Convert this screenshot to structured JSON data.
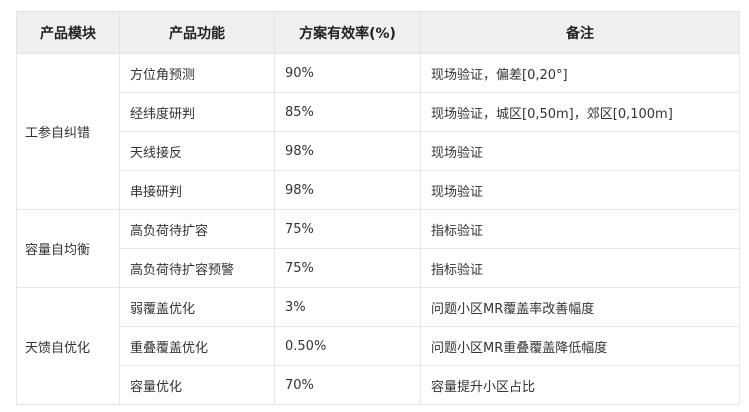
{
  "table": {
    "headers": [
      "产品模块",
      "产品功能",
      "方案有效率(%)",
      "备注"
    ],
    "groups": [
      {
        "module": "工参自纠错",
        "rows": [
          {
            "function": "方位角预测",
            "rate": "90%",
            "note": "现场验证，偏差[0,20°]"
          },
          {
            "function": "经纬度研判",
            "rate": "85%",
            "note": "现场验证，城区[0,50m]，郊区[0,100m]"
          },
          {
            "function": "天线接反",
            "rate": "98%",
            "note": "现场验证"
          },
          {
            "function": "串接研判",
            "rate": "98%",
            "note": "现场验证"
          }
        ]
      },
      {
        "module": "容量自均衡",
        "rows": [
          {
            "function": "高负荷待扩容",
            "rate": "75%",
            "note": "指标验证"
          },
          {
            "function": "高负荷待扩容预警",
            "rate": "75%",
            "note": "指标验证"
          }
        ]
      },
      {
        "module": "天馈自优化",
        "rows": [
          {
            "function": "弱覆盖优化",
            "rate": "3%",
            "note": "问题小区MR覆盖率改善幅度"
          },
          {
            "function": "重叠覆盖优化",
            "rate": "0.50%",
            "note": "问题小区MR重叠覆盖降低幅度"
          },
          {
            "function": "容量优化",
            "rate": "70%",
            "note": "容量提升小区占比"
          }
        ]
      }
    ]
  }
}
